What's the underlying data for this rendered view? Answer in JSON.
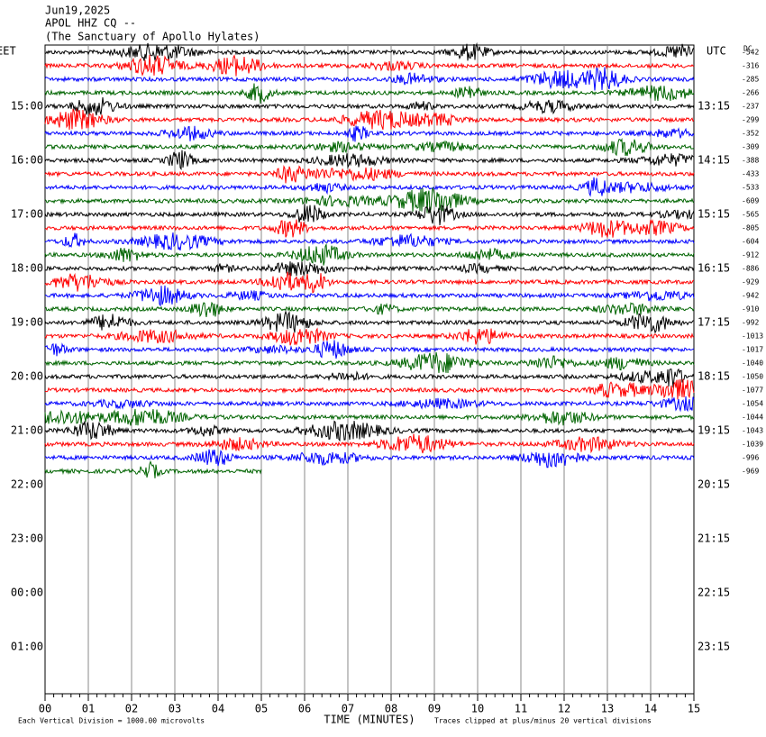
{
  "header": {
    "date": "Jun19,2025",
    "station": "APOL HHZ CQ --",
    "location": "(The Sanctuary of Apollo Hylates)"
  },
  "time_labels": {
    "left_title": "EET",
    "left": [
      "15:00",
      "16:00",
      "17:00",
      "18:00",
      "19:00",
      "20:00",
      "21:00",
      "22:00",
      "23:00",
      "00:00",
      "01:00"
    ],
    "right_title": "UTC",
    "right": [
      "13:15",
      "14:15",
      "15:15",
      "16:15",
      "17:15",
      "18:15",
      "19:15",
      "20:15",
      "21:15",
      "22:15",
      "23:15"
    ]
  },
  "dc_title": "DC",
  "dc_offsets": [
    -542,
    -316,
    -285,
    -266,
    -237,
    -299,
    -352,
    -309,
    -388,
    -433,
    -533,
    -609,
    -565,
    -805,
    -604,
    -912,
    -886,
    -929,
    -942,
    -910,
    -992,
    -1013,
    -1017,
    -1040,
    -1050,
    -1077,
    -1054,
    -1044,
    -1043,
    -1039,
    -996,
    -969
  ],
  "trace_colors": [
    "#000000",
    "#ff0000",
    "#0000ff",
    "#006400"
  ],
  "x_axis": {
    "ticks": [
      "00",
      "01",
      "02",
      "03",
      "04",
      "05",
      "06",
      "07",
      "08",
      "09",
      "10",
      "11",
      "12",
      "13",
      "14",
      "15"
    ],
    "label": "TIME (MINUTES)"
  },
  "footer": {
    "scale_note": "Each Vertical Division = 1000.00 microvolts",
    "clip_note": "Traces clipped at plus/minus 20 vertical divisions"
  }
}
